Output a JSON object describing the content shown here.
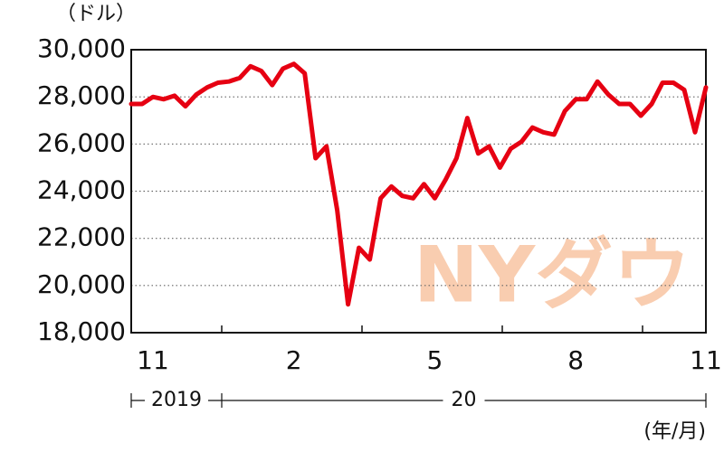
{
  "chart_data": {
    "type": "line",
    "y_unit": "（ドル）",
    "x_unit": "(年/月)",
    "watermark": "NYダウ",
    "year_groups": [
      "2019",
      "20"
    ],
    "categories": [
      null,
      null,
      "11",
      null,
      null,
      null,
      null,
      null,
      null,
      null,
      null,
      null,
      null,
      null,
      null,
      "2",
      null,
      null,
      null,
      null,
      null,
      null,
      null,
      null,
      null,
      null,
      null,
      null,
      "5",
      null,
      null,
      null,
      null,
      null,
      null,
      null,
      null,
      null,
      null,
      null,
      null,
      "8",
      null,
      null,
      null,
      null,
      null,
      null,
      null,
      null,
      null,
      null,
      null,
      "11"
    ],
    "series": [
      {
        "name": "NYダウ",
        "color": "#e60012",
        "values": [
          27700,
          27700,
          28000,
          27900,
          28050,
          27600,
          28100,
          28400,
          28600,
          28650,
          28800,
          29300,
          29100,
          28500,
          29200,
          29400,
          29000,
          25400,
          25900,
          23200,
          19200,
          21600,
          21100,
          23700,
          24200,
          23800,
          23700,
          24300,
          23700,
          24500,
          25400,
          27100,
          25600,
          25900,
          25000,
          25800,
          26100,
          26700,
          26500,
          26400,
          27400,
          27900,
          27900,
          28650,
          28100,
          27700,
          27700,
          27200,
          27700,
          28600,
          28600,
          28300,
          26500,
          28400
        ]
      }
    ],
    "ylim": [
      18000,
      30000
    ],
    "yticks": [
      {
        "value": 18000,
        "label": "18,000"
      },
      {
        "value": 20000,
        "label": "20,000"
      },
      {
        "value": 22000,
        "label": "22,000"
      },
      {
        "value": 24000,
        "label": "24,000"
      },
      {
        "value": 26000,
        "label": "26,000"
      },
      {
        "value": 28000,
        "label": "28,000"
      },
      {
        "value": 30000,
        "label": "30,000"
      }
    ],
    "grid": true
  }
}
